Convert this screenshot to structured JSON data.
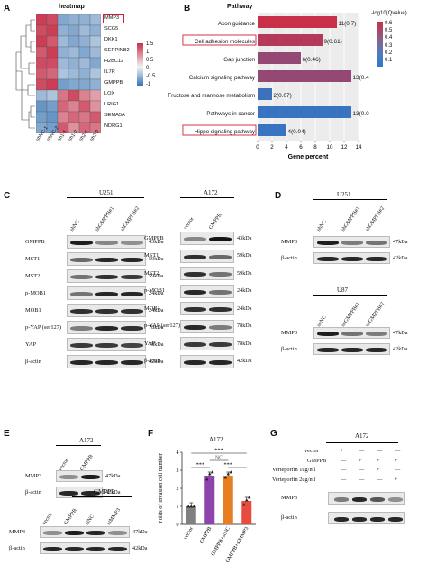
{
  "panels": {
    "A": {
      "letter": "A",
      "title": "heatmap",
      "genes": [
        "MMP3",
        "SCG5",
        "DKK1",
        "SERPINB2",
        "H2BC12",
        "IL7R",
        "GMPPB",
        "LOX",
        "LRIG1",
        "SEMA5A",
        "NDRG1"
      ],
      "samples": [
        "shNC-1",
        "shNC-2",
        "sh1-1",
        "sh1-2",
        "sh2-1",
        "sh2-2"
      ],
      "legend": [
        "1.5",
        "1",
        "0.5",
        "0",
        "-0.5",
        "-1"
      ],
      "colors": {
        "high": "#c8304a",
        "mid": "#f3f3f3",
        "low": "#2f6fb4"
      },
      "values": [
        [
          1.3,
          1.2,
          -0.8,
          -0.7,
          -0.7,
          -0.6
        ],
        [
          1.2,
          1.3,
          -0.7,
          -0.8,
          -0.6,
          -0.7
        ],
        [
          1.3,
          1.1,
          -0.6,
          -0.8,
          -0.7,
          -0.5
        ],
        [
          1.1,
          1.3,
          -0.7,
          -0.6,
          -0.8,
          -0.6
        ],
        [
          1.2,
          1.2,
          -0.6,
          -0.7,
          -0.6,
          -0.8
        ],
        [
          1.1,
          1.0,
          -0.5,
          -0.6,
          -0.7,
          -0.5
        ],
        [
          1.2,
          1.3,
          -0.9,
          -0.8,
          -0.8,
          -0.7
        ],
        [
          -0.6,
          -0.5,
          0.9,
          1.2,
          0.8,
          0.6
        ],
        [
          -1.0,
          -0.9,
          1.0,
          0.8,
          1.1,
          0.7
        ],
        [
          -0.9,
          -1.0,
          0.8,
          1.0,
          0.9,
          1.1
        ],
        [
          -0.8,
          -0.9,
          1.1,
          0.7,
          1.0,
          0.9
        ]
      ]
    },
    "B": {
      "letter": "B",
      "title": "Pathway",
      "xlabel": "Gene percent",
      "legend_title": "-log10(Qvalue)",
      "legend": [
        "0.6",
        "0.5",
        "0.4",
        "0.3",
        "0.2",
        "0.1"
      ]
    },
    "C": {
      "letter": "C",
      "left": {
        "cell": "U251",
        "lanes": [
          "shNC",
          "shGMPPB#1",
          "shGMPPB#2"
        ],
        "rows": [
          {
            "name": "GMPPB",
            "kda": "43kDa"
          },
          {
            "name": "MST1",
            "kda": "59kDa"
          },
          {
            "name": "MST2",
            "kda": "59kDa"
          },
          {
            "name": "p-MOB1",
            "kda": "24kDa"
          },
          {
            "name": "MOB1",
            "kda": "24kDa"
          },
          {
            "name": "p-YAP (ser127)",
            "kda": "78kDa"
          },
          {
            "name": "YAP",
            "kda": "78kDa"
          },
          {
            "name": "β-actin",
            "kda": "42kDa"
          }
        ]
      },
      "right": {
        "cell": "A172",
        "lanes": [
          "vector",
          "GMPPB"
        ],
        "rows": [
          {
            "name": "GMPPB",
            "kda": "43kDa"
          },
          {
            "name": "MST1",
            "kda": "59kDa"
          },
          {
            "name": "MST2",
            "kda": "59kDa"
          },
          {
            "name": "p-MOB1",
            "kda": "24kDa"
          },
          {
            "name": "MOB1",
            "kda": "24kDa"
          },
          {
            "name": "p-YAP (ser127)",
            "kda": "78kDa"
          },
          {
            "name": "YAP",
            "kda": "78kDa"
          },
          {
            "name": "β-actin",
            "kda": "42kDa"
          }
        ]
      }
    },
    "D": {
      "letter": "D",
      "top": {
        "cell": "U251",
        "lanes": [
          "shNC",
          "shGMPPB#1",
          "shGMPPB#2"
        ],
        "rows": [
          {
            "name": "MMP3",
            "kda": "47kDa"
          },
          {
            "name": "β-actin",
            "kda": "42kDa"
          }
        ]
      },
      "bottom": {
        "cell": "U87",
        "lanes": [
          "shNC",
          "shGMPPB#1",
          "shGMPPB#2"
        ],
        "rows": [
          {
            "name": "MMP3",
            "kda": "47kDa"
          },
          {
            "name": "β-actin",
            "kda": "42kDa"
          }
        ]
      }
    },
    "E": {
      "letter": "E",
      "top": {
        "cell": "A172",
        "lanes": [
          "vector",
          "GMPPB"
        ],
        "rows": [
          {
            "name": "MMP3",
            "kda": "47kDa"
          },
          {
            "name": "β-actin",
            "kda": "42kDa"
          }
        ]
      },
      "bottom": {
        "group": "GMPPB",
        "lanes": [
          "vector",
          "GMPPB",
          "siNC",
          "siMMP3"
        ],
        "rows": [
          {
            "name": "MMP3",
            "kda": "47kDa"
          },
          {
            "name": "β-actin",
            "kda": "42kDa"
          }
        ]
      }
    },
    "F": {
      "letter": "F",
      "title": "A172",
      "sig": [
        "***",
        "***",
        "***"
      ],
      "ns": "NC"
    },
    "G": {
      "letter": "G",
      "cell": "A172",
      "conditions": [
        {
          "name": "vector",
          "marks": [
            "+",
            "—",
            "—",
            "—"
          ]
        },
        {
          "name": "GMPPB",
          "marks": [
            "—",
            "+",
            "+",
            "+"
          ]
        },
        {
          "name": "Verteporfin 1ug/ml",
          "marks": [
            "—",
            "—",
            "+",
            "—"
          ]
        },
        {
          "name": "Verteporfin 2ug/ml",
          "marks": [
            "—",
            "—",
            "—",
            "+"
          ]
        }
      ],
      "rows": [
        {
          "name": "MMP3"
        },
        {
          "name": "β-actin"
        }
      ]
    }
  },
  "chart_data": [
    {
      "type": "bar",
      "panel": "B",
      "title": "Pathway",
      "xlabel": "Gene percent",
      "xlim": [
        0,
        14
      ],
      "xticks": [
        "0",
        "2",
        "4",
        "6",
        "8",
        "10",
        "12",
        "14"
      ],
      "categories": [
        "Axon guidance",
        "Cell adhesion molecules",
        "Gap junction",
        "Calcium signaling pathway",
        "Fructose and mannose metabolism",
        "Pathways in cancer",
        "Hippo signaling pathway"
      ],
      "values": [
        11,
        9,
        6,
        13,
        2,
        13,
        4
      ],
      "labels": [
        "11(0.7)",
        "9(0.61)",
        "6(0.46)",
        "13(0.46)",
        "2(0.07)",
        "13(0.04)",
        "4(0.04)"
      ],
      "qvalues": [
        0.7,
        0.61,
        0.46,
        0.46,
        0.07,
        0.04,
        0.04
      ],
      "highlighted": [
        "Cell adhesion molecules",
        "Hippo signaling pathway"
      ]
    },
    {
      "type": "bar",
      "panel": "F",
      "title": "A172",
      "ylabel": "Folds of invasion cell number",
      "ylim": [
        0,
        4
      ],
      "yticks": [
        "0",
        "1",
        "2",
        "3",
        "4"
      ],
      "categories": [
        "vector",
        "GMPPB",
        "GMPPB+siNC",
        "GMPPB+siMMP3"
      ],
      "values": [
        1.0,
        2.7,
        2.7,
        1.3
      ],
      "colors": [
        "#808080",
        "#8e44ad",
        "#e67e22",
        "#e74c3c"
      ],
      "points": [
        [
          1,
          1,
          1
        ],
        [
          2.5,
          2.8,
          2.9
        ],
        [
          2.6,
          2.8,
          2.9
        ],
        [
          1.1,
          1.35,
          1.5
        ]
      ]
    }
  ]
}
